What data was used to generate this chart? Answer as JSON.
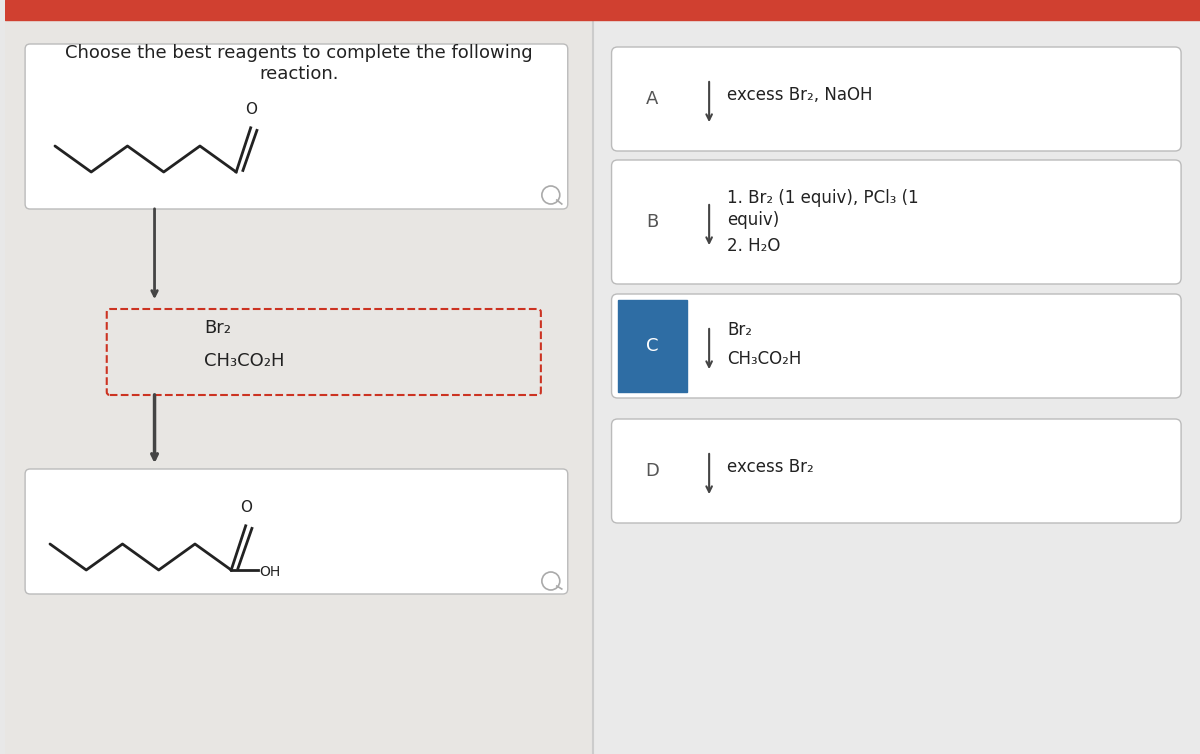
{
  "title": "Choose the best reagents to complete the following\nreaction.",
  "background_color": "#e8e8e8",
  "top_bar_color": "#d04030",
  "divider_color": "#cccccc",
  "options": [
    {
      "label": "A",
      "reagent_line1": "excess Br₂, NaOH",
      "reagent_line2": null,
      "reagent_line3": null,
      "selected": false
    },
    {
      "label": "B",
      "reagent_line1": "1. Br₂ (1 equiv), PCl₃ (1",
      "reagent_line2": "equiv)",
      "reagent_line3": "2. H₂O",
      "selected": false
    },
    {
      "label": "C",
      "reagent_line1": "Br₂",
      "reagent_line2": "CH₃CO₂H",
      "reagent_line3": null,
      "selected": true
    },
    {
      "label": "D",
      "reagent_line1": "excess Br₂",
      "reagent_line2": null,
      "reagent_line3": null,
      "selected": false
    }
  ],
  "reagent_box_text_line1": "Br₂",
  "reagent_box_text_line2": "CH₃CO₂H",
  "font_size_title": 13,
  "font_size_option_label": 13,
  "font_size_reagent": 12,
  "arrow_color": "#444444",
  "box_outline_color": "#bbbbbb",
  "selected_label_bg": "#2e6da4",
  "selected_label_text": "#ffffff",
  "dashed_box_color": "#cc3322"
}
